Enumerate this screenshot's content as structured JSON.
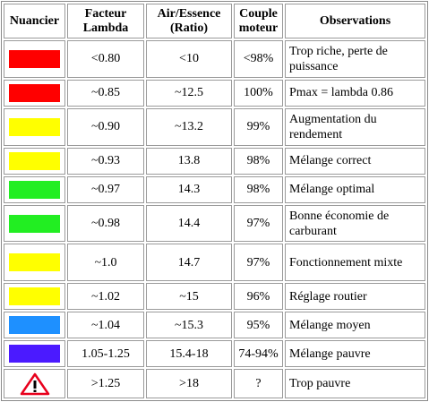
{
  "headers": {
    "shade": "Nuancier",
    "lambda": "Facteur Lambda",
    "ratio": "Air/Essence (Ratio)",
    "torque": "Couple moteur",
    "observations": "Observations"
  },
  "rows": [
    {
      "color": "#ff0000",
      "lambda": "<0.80",
      "ratio": "<10",
      "torque": "<98%",
      "observation": "Trop riche, perte de puissance"
    },
    {
      "color": "#ff0000",
      "lambda": "~0.85",
      "ratio": "~12.5",
      "torque": "100%",
      "observation": "Pmax = lambda 0.86"
    },
    {
      "color": "#ffff00",
      "lambda": "~0.90",
      "ratio": "~13.2",
      "torque": "99%",
      "observation": "Augmentation du rendement"
    },
    {
      "color": "#ffff00",
      "lambda": "~0.93",
      "ratio": "13.8",
      "torque": "98%",
      "observation": "Mélange correct"
    },
    {
      "color": "#22ee22",
      "lambda": "~0.97",
      "ratio": "14.3",
      "torque": "98%",
      "observation": "Mélange optimal"
    },
    {
      "color": "#22ee22",
      "lambda": "~0.98",
      "ratio": "14.4",
      "torque": "97%",
      "observation": "Bonne économie de carburant"
    },
    {
      "color": "#ffff00",
      "lambda": "~1.0",
      "ratio": "14.7",
      "torque": "97%",
      "observation": "Fonctionnement mixte"
    },
    {
      "color": "#ffff00",
      "lambda": "~1.02",
      "ratio": "~15",
      "torque": "96%",
      "observation": "Réglage routier"
    },
    {
      "color": "#1e90ff",
      "lambda": "~1.04",
      "ratio": "~15.3",
      "torque": "95%",
      "observation": "Mélange moyen"
    },
    {
      "color": "#4b1aff",
      "lambda": "1.05-1.25",
      "ratio": "15.4-18",
      "torque": "74-94%",
      "observation": "Mélange pauvre"
    },
    {
      "icon": "warning-triangle-icon",
      "lambda": ">1.25",
      "ratio": ">18",
      "torque": "?",
      "observation": "Trop pauvre"
    }
  ]
}
